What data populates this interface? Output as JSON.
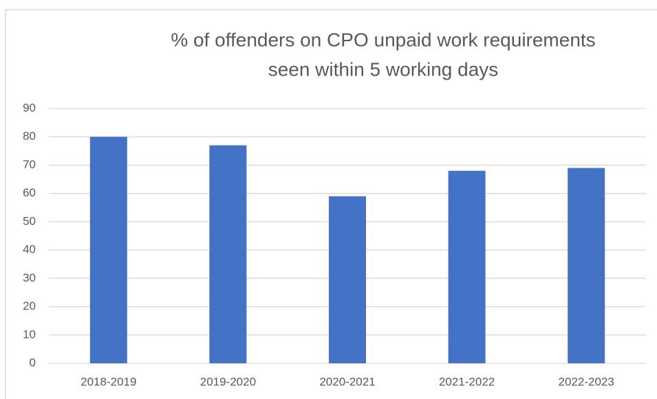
{
  "chart_data": {
    "type": "bar",
    "title": [
      "% of offenders on CPO unpaid work requirements",
      "seen within 5 working days"
    ],
    "categories": [
      "2018-2019",
      "2019-2020",
      "2020-2021",
      "2021-2022",
      "2022-2023"
    ],
    "values": [
      80,
      77,
      59,
      68,
      69
    ],
    "color": "#4472c4",
    "ylim": [
      0,
      90
    ],
    "yticks": [
      0,
      10,
      20,
      30,
      40,
      50,
      60,
      70,
      80,
      90
    ],
    "grid": true
  }
}
